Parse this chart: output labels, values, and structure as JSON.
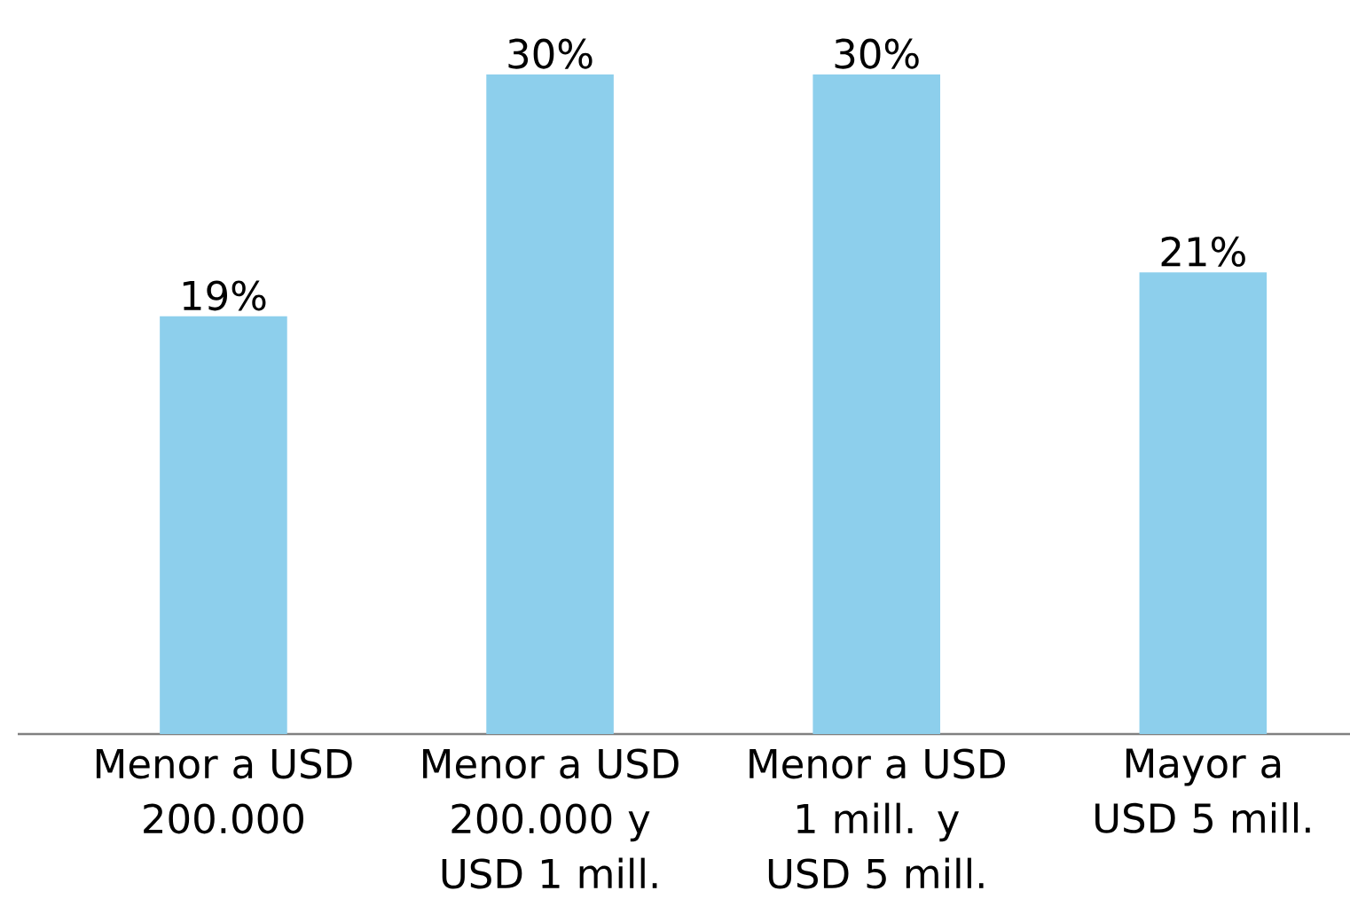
{
  "chart_data": {
    "type": "bar",
    "categories": [
      "Menor a USD 200.000",
      "Menor a USD 200.000 y USD 1 mill.",
      "Menor a USD 1 mill. y USD 5 mill.",
      "Mayor a USD 5 mill."
    ],
    "values": [
      19,
      30,
      30,
      21
    ],
    "value_labels": [
      "19%",
      "30%",
      "30%",
      "21%"
    ],
    "color": "#8dcfec"
  }
}
